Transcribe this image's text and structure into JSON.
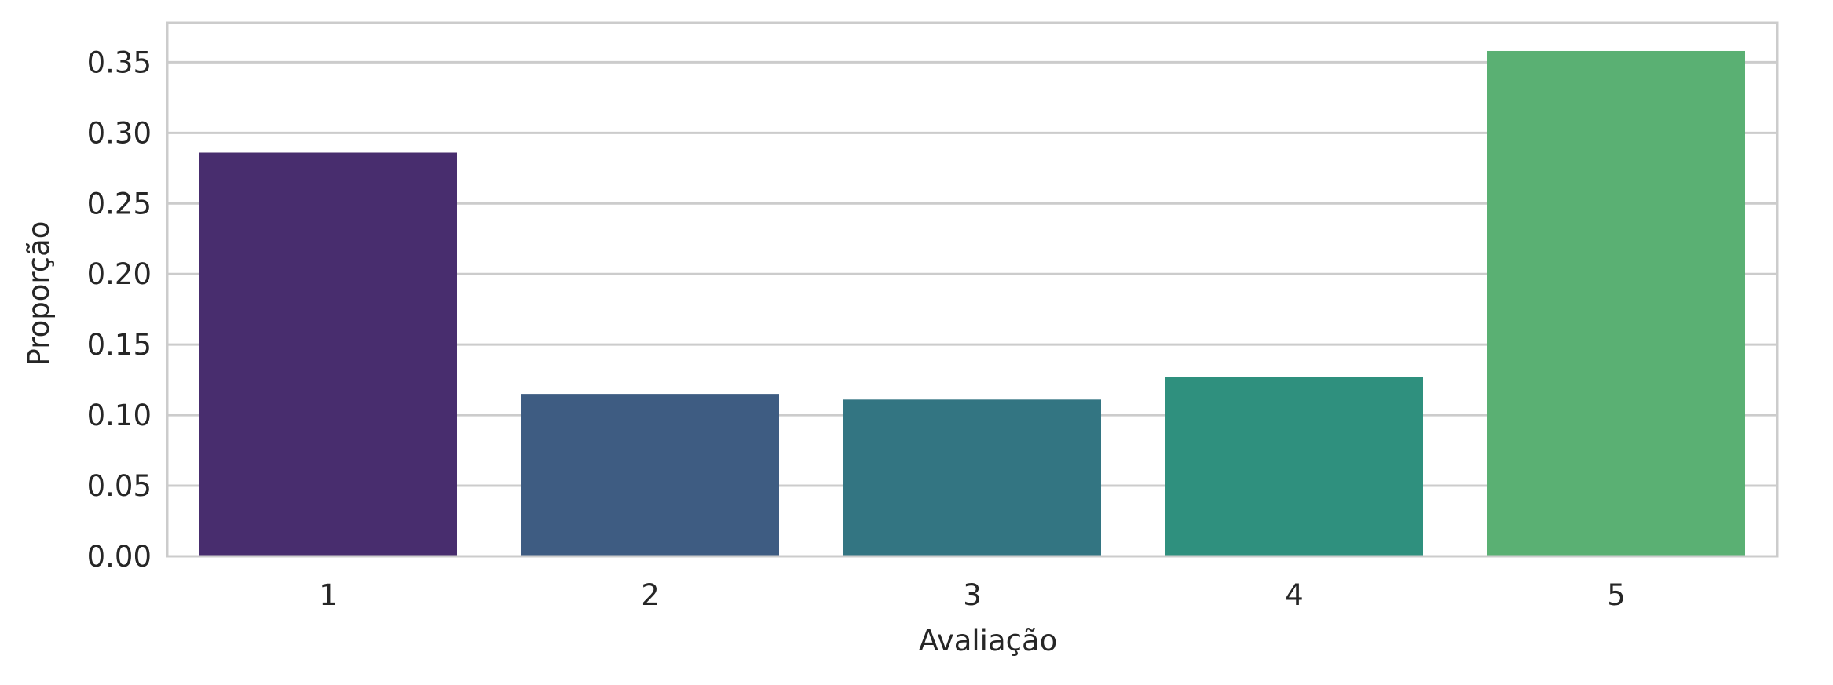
{
  "chart_data": {
    "type": "bar",
    "title": "",
    "xlabel": "Avaliação",
    "ylabel": "Proporção",
    "categories": [
      "1",
      "2",
      "3",
      "4",
      "5"
    ],
    "values": [
      0.286,
      0.115,
      0.111,
      0.127,
      0.358
    ],
    "ylim": [
      0,
      0.378
    ],
    "yticks": [
      "0.00",
      "0.05",
      "0.10",
      "0.15",
      "0.20",
      "0.25",
      "0.30",
      "0.35"
    ],
    "colors": [
      "#482d6e",
      "#3e5c82",
      "#337582",
      "#2f907e",
      "#5ab073"
    ],
    "grid": "y",
    "grid_color": "#cccccc",
    "frame_color": "#cccccc",
    "legend": "none"
  }
}
